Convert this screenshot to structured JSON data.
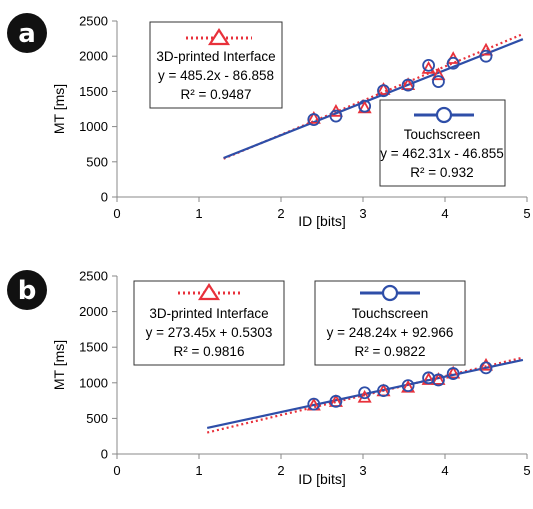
{
  "colors": {
    "interface": "#e8313b",
    "touch": "#2e4ea8",
    "badge": "#111111"
  },
  "chart_data": [
    {
      "type": "scatter",
      "panel_label": "a",
      "xlabel": "ID [bits]",
      "ylabel": "MT [ms]",
      "xlim": [
        0,
        5
      ],
      "ylim": [
        0,
        2500
      ],
      "x_ticks": [
        "0",
        "1",
        "2",
        "3",
        "4",
        "5"
      ],
      "y_ticks": [
        "0",
        "500",
        "1000",
        "1500",
        "2000",
        "2500"
      ],
      "grid": false,
      "legend_placement": "boxes upper-left (interface) and lower-right (touchscreen)",
      "series": [
        {
          "name": "3D-printed Interface",
          "marker": "triangle",
          "line": "dotted",
          "equation": "y = 485.2x - 86.858",
          "r2": "R² = 0.9487",
          "slope": 485.2,
          "intercept": -86.858,
          "fit_range": [
            1.3,
            4.95
          ],
          "points": [
            [
              2.4,
              1110
            ],
            [
              2.67,
              1210
            ],
            [
              3.02,
              1260
            ],
            [
              3.25,
              1520
            ],
            [
              3.55,
              1590
            ],
            [
              3.8,
              1820
            ],
            [
              3.92,
              1730
            ],
            [
              4.1,
              1960
            ],
            [
              4.5,
              2080
            ]
          ]
        },
        {
          "name": "Touchscreen",
          "marker": "circle",
          "line": "solid",
          "equation": "y = 462.31x - 46.855",
          "r2": "R² = 0.932",
          "slope": 462.31,
          "intercept": -46.855,
          "fit_range": [
            1.3,
            4.95
          ],
          "points": [
            [
              2.4,
              1100
            ],
            [
              2.67,
              1150
            ],
            [
              3.02,
              1290
            ],
            [
              3.25,
              1510
            ],
            [
              3.55,
              1590
            ],
            [
              3.8,
              1870
            ],
            [
              3.92,
              1640
            ],
            [
              4.1,
              1900
            ],
            [
              4.5,
              2000
            ]
          ]
        }
      ]
    },
    {
      "type": "scatter",
      "panel_label": "b",
      "xlabel": "ID [bits]",
      "ylabel": "MT [ms]",
      "xlim": [
        0,
        5
      ],
      "ylim": [
        0,
        2500
      ],
      "x_ticks": [
        "0",
        "1",
        "2",
        "3",
        "4",
        "5"
      ],
      "y_ticks": [
        "0",
        "500",
        "1000",
        "1500",
        "2000",
        "2500"
      ],
      "grid": false,
      "legend_placement": "boxes across top",
      "series": [
        {
          "name": "3D-printed Interface",
          "marker": "triangle",
          "line": "dotted",
          "equation": "y = 273.45x + 0.5303",
          "r2": "R² = 0.9816",
          "slope": 273.45,
          "intercept": 0.5303,
          "fit_range": [
            1.1,
            4.95
          ],
          "points": [
            [
              2.4,
              680
            ],
            [
              2.67,
              730
            ],
            [
              3.02,
              790
            ],
            [
              3.25,
              880
            ],
            [
              3.55,
              930
            ],
            [
              3.8,
              1040
            ],
            [
              3.92,
              1040
            ],
            [
              4.1,
              1130
            ],
            [
              4.5,
              1240
            ]
          ]
        },
        {
          "name": "Touchscreen",
          "marker": "circle",
          "line": "solid",
          "equation": "y = 248.24x + 92.966",
          "r2": "R² = 0.9822",
          "slope": 248.24,
          "intercept": 92.966,
          "fit_range": [
            1.1,
            4.95
          ],
          "points": [
            [
              2.4,
              700
            ],
            [
              2.67,
              740
            ],
            [
              3.02,
              860
            ],
            [
              3.25,
              890
            ],
            [
              3.55,
              960
            ],
            [
              3.8,
              1070
            ],
            [
              3.92,
              1040
            ],
            [
              4.1,
              1130
            ],
            [
              4.5,
              1210
            ]
          ]
        }
      ]
    }
  ]
}
